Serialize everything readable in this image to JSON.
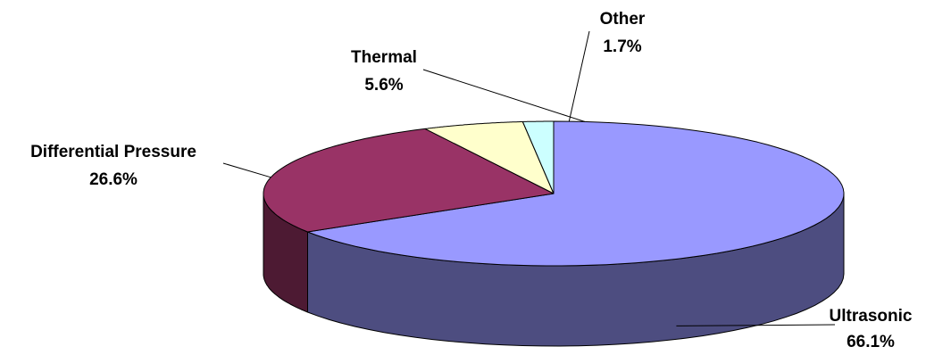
{
  "chart_data": {
    "type": "pie",
    "title": "",
    "three_d": true,
    "categories": [
      "Ultrasonic",
      "Differential Pressure",
      "Thermal",
      "Other"
    ],
    "values": [
      66.1,
      26.6,
      5.6,
      1.7
    ],
    "value_labels": [
      "66.1%",
      "26.6%",
      "5.6%",
      "1.7%"
    ],
    "colors": [
      "#9999FF",
      "#993366",
      "#FFFFCC",
      "#CCFFFF"
    ],
    "side_colors": [
      "#4D4D80",
      "#4D1A33",
      "#808066",
      "#668080"
    ],
    "legend": "none",
    "label_position": "outside with leader lines"
  }
}
